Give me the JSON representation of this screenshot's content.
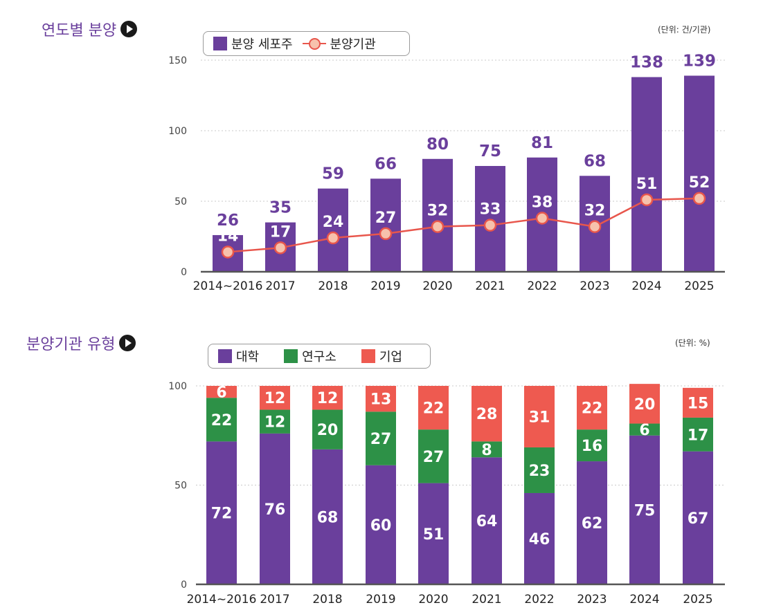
{
  "sections": [
    {
      "title": "연도별 분양",
      "unit": "(단위: 건/기관)",
      "legend": [
        "분양 세포주",
        "분양기관"
      ]
    },
    {
      "title": "분양기관 유형",
      "unit": "(단위: %)",
      "legend": [
        "대학",
        "연구소",
        "기업"
      ]
    }
  ],
  "colors": {
    "purple": "#6a3f9c",
    "green": "#2d9147",
    "red": "#ee5a50",
    "line": "#e8564c",
    "marker_fill": "#f7c2ac"
  },
  "chart_data": [
    {
      "type": "bar",
      "categories": [
        "2014~2016",
        "2017",
        "2018",
        "2019",
        "2020",
        "2021",
        "2022",
        "2023",
        "2024",
        "2025"
      ],
      "series": [
        {
          "name": "분양 세포주",
          "type": "bar",
          "values": [
            26,
            35,
            59,
            66,
            80,
            75,
            81,
            68,
            138,
            139
          ]
        },
        {
          "name": "분양기관",
          "type": "line",
          "values": [
            14,
            17,
            24,
            27,
            32,
            33,
            38,
            32,
            51,
            52
          ]
        }
      ],
      "ylim": [
        0,
        150
      ],
      "yticks": [
        0,
        50,
        100,
        150
      ],
      "grid": true,
      "legend_position": "top-left"
    },
    {
      "type": "bar",
      "stacked": true,
      "categories": [
        "2014~2016",
        "2017",
        "2018",
        "2019",
        "2020",
        "2021",
        "2022",
        "2023",
        "2024",
        "2025"
      ],
      "series": [
        {
          "name": "대학",
          "values": [
            72,
            76,
            68,
            60,
            51,
            64,
            46,
            62,
            75,
            67
          ]
        },
        {
          "name": "연구소",
          "values": [
            22,
            12,
            20,
            27,
            27,
            8,
            23,
            16,
            6,
            17
          ]
        },
        {
          "name": "기업",
          "values": [
            6,
            12,
            12,
            13,
            22,
            28,
            31,
            22,
            20,
            15
          ]
        }
      ],
      "ylim": [
        0,
        100
      ],
      "yticks": [
        0,
        50,
        100
      ],
      "grid": true,
      "legend_position": "top-left"
    }
  ]
}
